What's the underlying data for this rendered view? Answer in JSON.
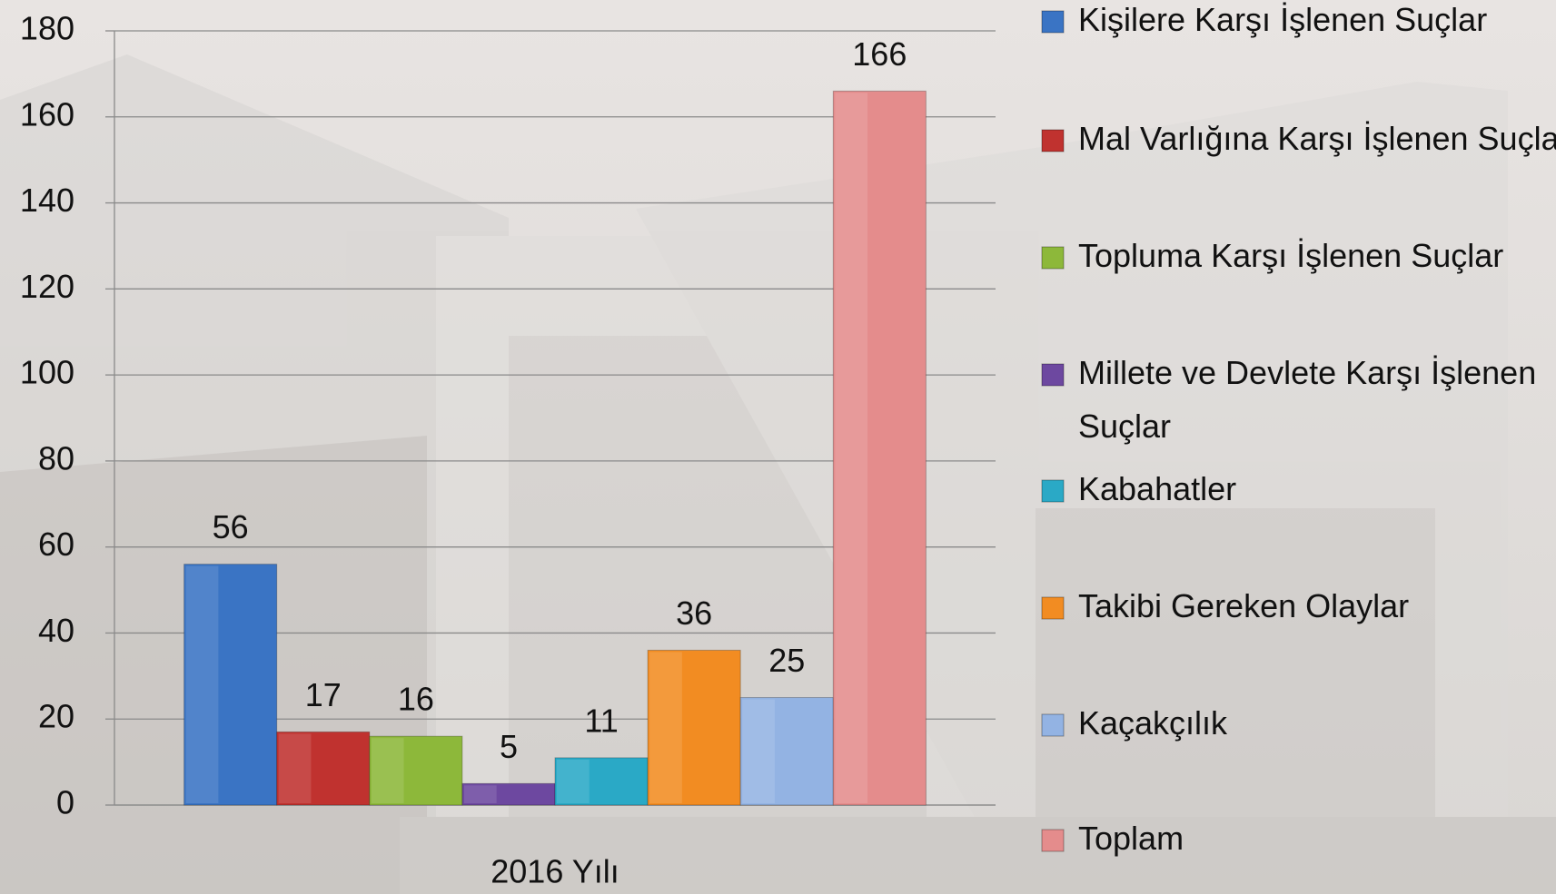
{
  "chart_data": {
    "type": "bar",
    "categories": [
      "2016 Yılı"
    ],
    "series": [
      {
        "name": "Kişilere Karşı İşlenen Suçlar",
        "color": "#3a74c4",
        "values": [
          56
        ]
      },
      {
        "name": "Mal Varlığına Karşı İşlenen Suçlar",
        "color": "#c0322f",
        "values": [
          17
        ]
      },
      {
        "name": "Topluma Karşı İşlenen Suçlar",
        "color": "#8db83a",
        "values": [
          16
        ]
      },
      {
        "name": "Millete ve Devlete Karşı İşlenen Suçlar",
        "color": "#6d48a0",
        "values": [
          5
        ]
      },
      {
        "name": "Kabahatler",
        "color": "#2aa9c6",
        "values": [
          11
        ]
      },
      {
        "name": "Takibi Gereken Olaylar",
        "color": "#f28c22",
        "values": [
          36
        ]
      },
      {
        "name": "Kaçakçılık",
        "color": "#93b3e3",
        "values": [
          25
        ]
      },
      {
        "name": "Toplam",
        "color": "#e48c8c",
        "values": [
          166
        ]
      }
    ],
    "ylim": [
      0,
      180
    ],
    "yticks": [
      0,
      20,
      40,
      60,
      80,
      100,
      120,
      140,
      160,
      180
    ],
    "grid": true,
    "legend": "right"
  }
}
